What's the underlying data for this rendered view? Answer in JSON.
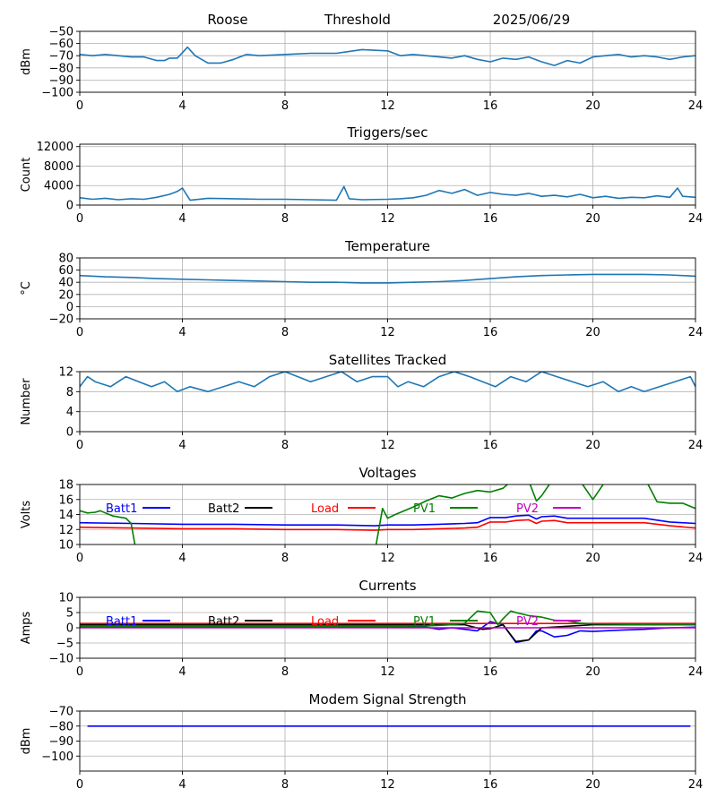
{
  "header": {
    "station": "Roose",
    "mode": "Threshold",
    "date": "2025/06/29"
  },
  "colors": {
    "series_default": "#1f77b4",
    "grid": "#b0b0b0",
    "batt1": "#0000ff",
    "batt2": "#000000",
    "load": "#ff0000",
    "pv1": "#008000",
    "pv2": "#bf00bf"
  },
  "chart_data": [
    {
      "id": "signal",
      "type": "line",
      "title": "",
      "ylabel": "dBm",
      "xlim": [
        0,
        24
      ],
      "xticks": [
        0,
        4,
        8,
        12,
        16,
        20,
        24
      ],
      "ylim": [
        -100,
        -50
      ],
      "yticks": [
        -100,
        -90,
        -80,
        -70,
        -60,
        -50
      ],
      "grid": true,
      "series": [
        {
          "color": "#1f77b4",
          "x": [
            0,
            0.5,
            1,
            1.5,
            2,
            2.5,
            3,
            3.3,
            3.5,
            3.8,
            4.2,
            4.5,
            5,
            5.5,
            6,
            6.5,
            7,
            8,
            9,
            10,
            11,
            12,
            12.5,
            13,
            13.5,
            14,
            14.5,
            15,
            15.5,
            16,
            16.5,
            17,
            17.5,
            18,
            18.5,
            19,
            19.5,
            20,
            20.5,
            21,
            21.5,
            22,
            22.5,
            23,
            23.5,
            24
          ],
          "y": [
            -69,
            -70,
            -69,
            -70,
            -71,
            -71,
            -74,
            -74,
            -72,
            -72,
            -63,
            -70,
            -76,
            -76,
            -73,
            -69,
            -70,
            -69,
            -68,
            -68,
            -65,
            -66,
            -70,
            -69,
            -70,
            -71,
            -72,
            -70,
            -73,
            -75,
            -72,
            -73,
            -71,
            -75,
            -78,
            -74,
            -76,
            -71,
            -70,
            -69,
            -71,
            -70,
            -71,
            -73,
            -71,
            -70
          ]
        }
      ]
    },
    {
      "id": "triggers",
      "type": "line",
      "title": "Triggers/sec",
      "ylabel": "Count",
      "xlim": [
        0,
        24
      ],
      "xticks": [
        0,
        4,
        8,
        12,
        16,
        20,
        24
      ],
      "ylim": [
        0,
        12500
      ],
      "yticks": [
        0,
        4000,
        8000,
        12000
      ],
      "grid": true,
      "series": [
        {
          "color": "#1f77b4",
          "x": [
            0,
            0.5,
            1,
            1.5,
            2,
            2.5,
            3,
            3.5,
            3.8,
            4,
            4.3,
            5,
            6,
            7,
            8,
            9,
            10,
            10.3,
            10.5,
            11,
            12,
            12.5,
            13,
            13.5,
            14,
            14.5,
            15,
            15.5,
            16,
            16.5,
            17,
            17.5,
            18,
            18.5,
            19,
            19.5,
            20,
            20.5,
            21,
            21.5,
            22,
            22.5,
            23,
            23.3,
            23.5,
            24
          ],
          "y": [
            1500,
            1200,
            1400,
            1100,
            1300,
            1200,
            1600,
            2200,
            2800,
            3500,
            1000,
            1400,
            1300,
            1200,
            1200,
            1100,
            1000,
            3800,
            1300,
            1100,
            1200,
            1300,
            1500,
            2000,
            3000,
            2400,
            3200,
            2000,
            2600,
            2200,
            2000,
            2400,
            1800,
            2000,
            1700,
            2200,
            1500,
            1800,
            1400,
            1600,
            1500,
            1900,
            1600,
            3500,
            1800,
            1600
          ]
        }
      ]
    },
    {
      "id": "temperature",
      "type": "line",
      "title": "Temperature",
      "ylabel": "°C",
      "xlim": [
        0,
        24
      ],
      "xticks": [
        0,
        4,
        8,
        12,
        16,
        20,
        24
      ],
      "ylim": [
        -20,
        80
      ],
      "yticks": [
        -20,
        0,
        20,
        40,
        60,
        80
      ],
      "grid": true,
      "series": [
        {
          "color": "#1f77b4",
          "x": [
            0,
            1,
            2,
            3,
            4,
            5,
            6,
            7,
            8,
            9,
            10,
            11,
            12,
            13,
            14,
            15,
            16,
            17,
            18,
            19,
            20,
            21,
            22,
            23,
            24
          ],
          "y": [
            51,
            49,
            48,
            46,
            45,
            44,
            43,
            42,
            41,
            40,
            40,
            39,
            39,
            40,
            41,
            43,
            46,
            49,
            51,
            52,
            53,
            53,
            53,
            52,
            50
          ]
        }
      ]
    },
    {
      "id": "satellites",
      "type": "line",
      "title": "Satellites Tracked",
      "ylabel": "Number",
      "xlim": [
        0,
        24
      ],
      "xticks": [
        0,
        4,
        8,
        12,
        16,
        20,
        24
      ],
      "ylim": [
        0,
        12
      ],
      "yticks": [
        0,
        4,
        8,
        12
      ],
      "grid": true,
      "series": [
        {
          "color": "#1f77b4",
          "x": [
            0,
            0.3,
            0.6,
            1.2,
            1.8,
            2.3,
            2.8,
            3.3,
            3.8,
            4.3,
            5,
            5.6,
            6.2,
            6.8,
            7.4,
            8,
            8.5,
            9,
            9.6,
            10.2,
            10.8,
            11.4,
            12,
            12.4,
            12.8,
            13.4,
            14,
            14.6,
            15.2,
            15.7,
            16.2,
            16.8,
            17.4,
            18,
            18.6,
            19.2,
            19.8,
            20.4,
            21,
            21.5,
            22,
            22.6,
            23.2,
            23.8,
            24
          ],
          "y": [
            9,
            11,
            10,
            9,
            11,
            10,
            9,
            10,
            8,
            9,
            8,
            9,
            10,
            9,
            11,
            12,
            11,
            10,
            11,
            12,
            10,
            11,
            11,
            9,
            10,
            9,
            11,
            12,
            11,
            10,
            9,
            11,
            10,
            12,
            11,
            10,
            9,
            10,
            8,
            9,
            8,
            9,
            10,
            11,
            9
          ]
        }
      ]
    },
    {
      "id": "voltages",
      "type": "line",
      "title": "Voltages",
      "ylabel": "Volts",
      "xlim": [
        0,
        24
      ],
      "xticks": [
        0,
        4,
        8,
        12,
        16,
        20,
        24
      ],
      "ylim": [
        10,
        18
      ],
      "yticks": [
        10,
        12,
        14,
        16,
        18
      ],
      "grid": true,
      "legend": "top, horizontal",
      "series": [
        {
          "name": "Batt1",
          "color": "#0000ff",
          "x": [
            0,
            2,
            4,
            6,
            8,
            10,
            11.5,
            12,
            13,
            14,
            15,
            15.5,
            16,
            16.6,
            17,
            17.5,
            17.8,
            18,
            18.5,
            19,
            20,
            21,
            22,
            23,
            24
          ],
          "y": [
            12.9,
            12.8,
            12.7,
            12.7,
            12.6,
            12.6,
            12.5,
            12.6,
            12.6,
            12.7,
            12.8,
            12.9,
            13.6,
            13.6,
            13.8,
            13.9,
            13.4,
            13.7,
            13.8,
            13.5,
            13.5,
            13.5,
            13.5,
            13.0,
            12.8
          ]
        },
        {
          "name": "Load",
          "color": "#ff0000",
          "x": [
            0,
            2,
            4,
            6,
            8,
            10,
            11.5,
            12,
            13,
            14,
            15,
            15.5,
            16,
            16.6,
            17,
            17.5,
            17.8,
            18,
            18.5,
            19,
            20,
            21,
            22,
            23,
            24
          ],
          "y": [
            12.3,
            12.2,
            12.1,
            12.1,
            12.0,
            12.0,
            11.9,
            12.0,
            12.0,
            12.1,
            12.2,
            12.3,
            13.0,
            13.0,
            13.2,
            13.3,
            12.8,
            13.1,
            13.2,
            12.9,
            12.9,
            12.9,
            12.9,
            12.5,
            12.2
          ]
        },
        {
          "name": "PV1",
          "color": "#008000",
          "x": [
            0,
            0.3,
            0.6,
            0.8,
            1,
            1.3,
            1.8,
            2.0,
            2.2,
            11.5,
            11.8,
            12.0,
            12.3,
            13.0,
            13.5,
            14.0,
            14.5,
            15.0,
            15.5,
            16.0,
            16.5,
            17.0,
            17.5,
            17.8,
            18.0,
            18.5,
            19.0,
            19.5,
            20.0,
            20.5,
            21.0,
            21.5,
            22.0,
            22.5,
            23.0,
            23.5,
            24
          ],
          "y": [
            14.5,
            14.2,
            14.3,
            14.5,
            14.2,
            13.8,
            13.5,
            12.8,
            9.0,
            9.0,
            14.8,
            13.5,
            14.0,
            15.0,
            15.8,
            16.5,
            16.2,
            16.8,
            17.2,
            17.0,
            17.5,
            19.0,
            18.5,
            15.8,
            16.5,
            19.0,
            19.5,
            18.5,
            16.0,
            18.5,
            19.0,
            19.0,
            19.0,
            15.7,
            15.5,
            15.5,
            14.8
          ]
        },
        {
          "name": "Batt2",
          "color": "#000000",
          "x": [],
          "y": []
        },
        {
          "name": "PV2",
          "color": "#bf00bf",
          "x": [],
          "y": []
        }
      ]
    },
    {
      "id": "currents",
      "type": "line",
      "title": "Currents",
      "ylabel": "Amps",
      "xlim": [
        0,
        24
      ],
      "xticks": [
        0,
        4,
        8,
        12,
        16,
        20,
        24
      ],
      "ylim": [
        -10,
        10
      ],
      "yticks": [
        -10,
        -5,
        0,
        5,
        10
      ],
      "grid": true,
      "legend": "top, horizontal",
      "series": [
        {
          "name": "Batt1",
          "color": "#0000ff",
          "x": [
            0,
            2,
            4,
            6,
            8,
            10,
            12,
            13.5,
            14,
            14.5,
            15,
            15.5,
            16,
            16.5,
            17,
            17.5,
            17.8,
            18,
            18.5,
            19,
            19.5,
            20,
            21,
            22,
            23,
            24
          ],
          "y": [
            0.3,
            0.3,
            0.3,
            0.3,
            0.3,
            0.3,
            0.3,
            0.2,
            -0.5,
            0,
            -0.5,
            -1,
            2,
            1,
            -4.8,
            -4,
            -1,
            -1,
            -3,
            -2.5,
            -1,
            -1.2,
            -0.8,
            -0.5,
            0,
            0.2
          ]
        },
        {
          "name": "Batt2",
          "color": "#000000",
          "x": [
            0,
            4,
            8,
            12,
            14,
            15,
            15.7,
            16,
            16.5,
            17,
            17.5,
            18,
            19,
            20,
            21,
            22,
            23,
            24
          ],
          "y": [
            1,
            1,
            1,
            1,
            1,
            1,
            -0.5,
            -0.3,
            1,
            -4.5,
            -4,
            0,
            0.5,
            1,
            1,
            1,
            1,
            1
          ]
        },
        {
          "name": "Load",
          "color": "#ff0000",
          "x": [
            0,
            4,
            8,
            12,
            14,
            16,
            18,
            20,
            22,
            24
          ],
          "y": [
            1.4,
            1.4,
            1.4,
            1.4,
            1.4,
            1.4,
            1.4,
            1.4,
            1.4,
            1.4
          ]
        },
        {
          "name": "PV1",
          "color": "#008000",
          "x": [
            0,
            4,
            8,
            12,
            13.5,
            14,
            14.5,
            15,
            15.5,
            16,
            16.3,
            16.5,
            16.8,
            17,
            17.5,
            18,
            18.5,
            19,
            19.5,
            20,
            21,
            22,
            23,
            24
          ],
          "y": [
            0.5,
            0.5,
            0.5,
            0.5,
            0.6,
            0.8,
            1,
            1.5,
            5.5,
            5,
            1,
            3,
            5.5,
            5,
            4,
            3.5,
            2.5,
            2.3,
            1.5,
            1.3,
            1.2,
            1,
            1,
            1
          ]
        },
        {
          "name": "PV2",
          "color": "#bf00bf",
          "x": [
            0,
            4,
            8,
            12,
            16,
            20,
            24
          ],
          "y": [
            0,
            0,
            0,
            0,
            0,
            0,
            0
          ]
        }
      ]
    },
    {
      "id": "modem",
      "type": "line",
      "title": "Modem Signal Strength",
      "ylabel": "dBm",
      "xlim": [
        0,
        24
      ],
      "xticks": [
        0,
        4,
        8,
        12,
        16,
        20,
        24
      ],
      "ylim": [
        -110,
        -70
      ],
      "yticks": [
        -100,
        -90,
        -80,
        -70
      ],
      "grid": true,
      "series": [
        {
          "color": "#0000ff",
          "x": [
            0.3,
            23.8
          ],
          "y": [
            -80,
            -80
          ]
        }
      ]
    }
  ]
}
